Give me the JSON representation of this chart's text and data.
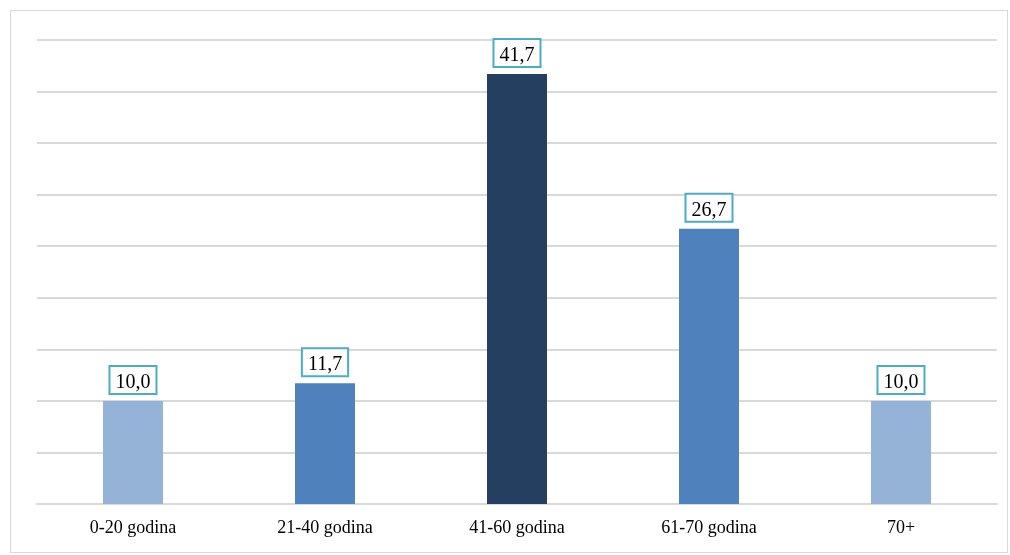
{
  "chart_data": {
    "type": "bar",
    "categories": [
      "0-20 godina",
      "21-40 godina",
      "41-60 godina",
      "61-70 godina",
      "70+"
    ],
    "values": [
      10.0,
      11.7,
      41.7,
      26.7,
      10.0
    ],
    "colors": [
      "#95b3d7",
      "#4f81bd",
      "#243f60",
      "#4f81bd",
      "#95b3d7"
    ],
    "value_labels": [
      "10,0",
      "11,7",
      "41,7",
      "26,7",
      "10,0"
    ],
    "ylim": [
      0,
      45
    ],
    "yticks": [
      {
        "value": 0,
        "label": null
      },
      {
        "value": 5,
        "label": null
      },
      {
        "value": 10,
        "label": null
      },
      {
        "value": 15,
        "label": null
      },
      {
        "value": 20,
        "label": null
      },
      {
        "value": 25,
        "label": null
      },
      {
        "value": 30,
        "label": null
      },
      {
        "value": 35,
        "label": null
      },
      {
        "value": 40,
        "label": null
      },
      {
        "value": 45,
        "label": null
      }
    ],
    "tick_labels": "x",
    "grid": "y"
  }
}
